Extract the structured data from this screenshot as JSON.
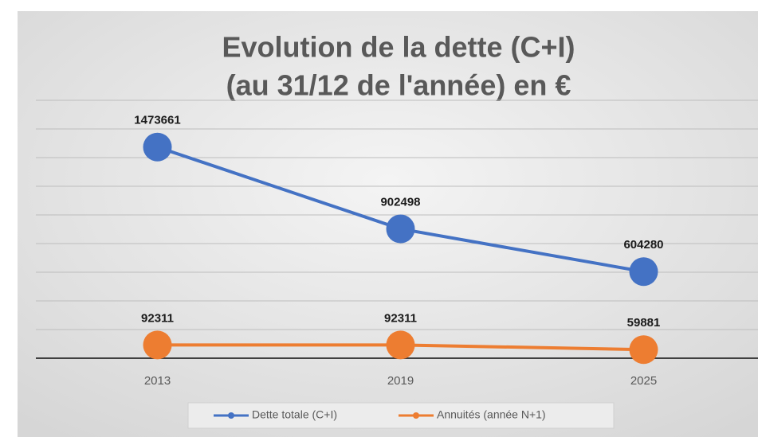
{
  "chart_data": {
    "type": "line",
    "title": [
      "Evolution de la dette (C+I)",
      "(au 31/12 de l'année) en €"
    ],
    "categories": [
      "2013",
      "2019",
      "2025"
    ],
    "series": [
      {
        "name": "Dette totale (C+I)",
        "color": "#4472c4",
        "values": [
          1473661,
          902498,
          604280
        ]
      },
      {
        "name": "Annuités (année N+1)",
        "color": "#ed7d31",
        "values": [
          92311,
          92311,
          59881
        ]
      }
    ],
    "ylim": [
      0,
      1800000
    ],
    "yticks": [
      0,
      200000,
      400000,
      600000,
      800000,
      1000000,
      1200000,
      1400000,
      1600000,
      1800000
    ],
    "grid": true,
    "legend": "bottom"
  }
}
